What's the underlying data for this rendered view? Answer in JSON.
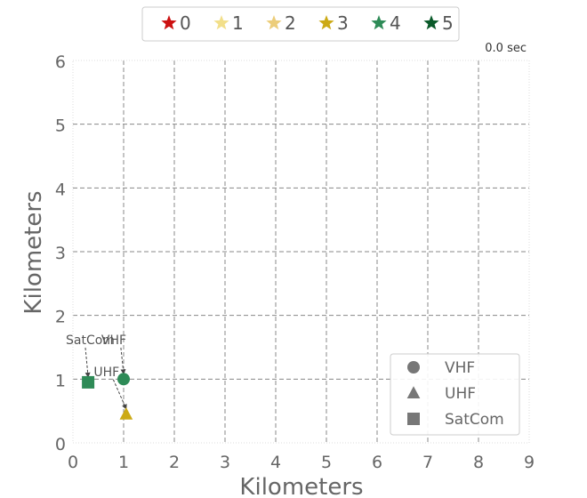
{
  "chart_data": {
    "type": "scatter",
    "timer_text": "0.0 sec",
    "xlabel": "Kilometers",
    "ylabel": "Kilometers",
    "xlim": [
      0,
      9
    ],
    "ylim": [
      0,
      6
    ],
    "x_ticks": [
      0,
      1,
      2,
      3,
      4,
      5,
      6,
      7,
      8,
      9
    ],
    "y_ticks": [
      0,
      1,
      2,
      3,
      4,
      5,
      6
    ],
    "grid": true,
    "top_legend": {
      "placement": "top-center",
      "entries": [
        {
          "label": "0",
          "color": "#cc1010"
        },
        {
          "label": "1",
          "color": "#f2df8a"
        },
        {
          "label": "2",
          "color": "#eccd7a"
        },
        {
          "label": "3",
          "color": "#ccaa16"
        },
        {
          "label": "4",
          "color": "#2e8b57"
        },
        {
          "label": "5",
          "color": "#0a5a2a"
        }
      ]
    },
    "shape_legend": {
      "placement": "lower-right",
      "entries": [
        {
          "label": "VHF",
          "shape": "circle",
          "color": "#777777"
        },
        {
          "label": "UHF",
          "shape": "triangle",
          "color": "#777777"
        },
        {
          "label": "SatCom",
          "shape": "square",
          "color": "#777777"
        }
      ]
    },
    "points": [
      {
        "label": "SatCom",
        "shape": "square",
        "x": 0.3,
        "y": 0.95,
        "color": "#2e8b57"
      },
      {
        "label": "VHF",
        "shape": "circle",
        "x": 1.0,
        "y": 1.0,
        "color": "#2e8b57"
      },
      {
        "label": "UHF",
        "shape": "triangle",
        "x": 1.05,
        "y": 0.45,
        "color": "#ccaa16"
      }
    ],
    "annotations": [
      {
        "text": "SatCom",
        "x": 0.0,
        "y": 1.55,
        "target_x": 0.3,
        "target_y": 0.95
      },
      {
        "text": "VHF",
        "x": 0.7,
        "y": 1.55,
        "target_x": 1.0,
        "target_y": 1.0
      },
      {
        "text": "UHF",
        "x": 0.55,
        "y": 1.05,
        "target_x": 1.05,
        "target_y": 0.45
      }
    ]
  }
}
